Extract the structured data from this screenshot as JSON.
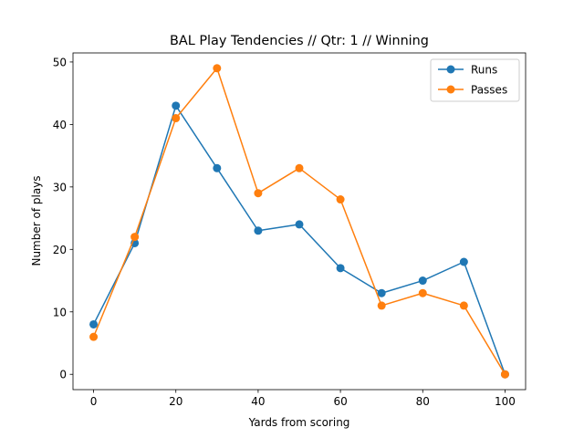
{
  "chart_data": {
    "type": "line",
    "title": "BAL Play Tendencies // Qtr: 1 // Winning",
    "xlabel": "Yards from scoring",
    "ylabel": "Number of plays",
    "x": [
      0,
      10,
      20,
      30,
      40,
      50,
      60,
      70,
      80,
      90,
      100
    ],
    "xlim": [
      -5,
      105
    ],
    "ylim": [
      -2.45,
      51.45
    ],
    "xticks": [
      0,
      20,
      40,
      60,
      80,
      100
    ],
    "yticks": [
      0,
      10,
      20,
      30,
      40,
      50
    ],
    "grid": false,
    "legend_position": "top-right",
    "series": [
      {
        "name": "Runs",
        "color": "#1f77b4",
        "marker": "circle",
        "values": [
          8,
          21,
          43,
          33,
          23,
          24,
          17,
          13,
          15,
          18,
          0
        ]
      },
      {
        "name": "Passes",
        "color": "#ff7f0e",
        "marker": "circle",
        "values": [
          6,
          22,
          41,
          49,
          29,
          33,
          28,
          11,
          13,
          11,
          0
        ]
      }
    ]
  }
}
